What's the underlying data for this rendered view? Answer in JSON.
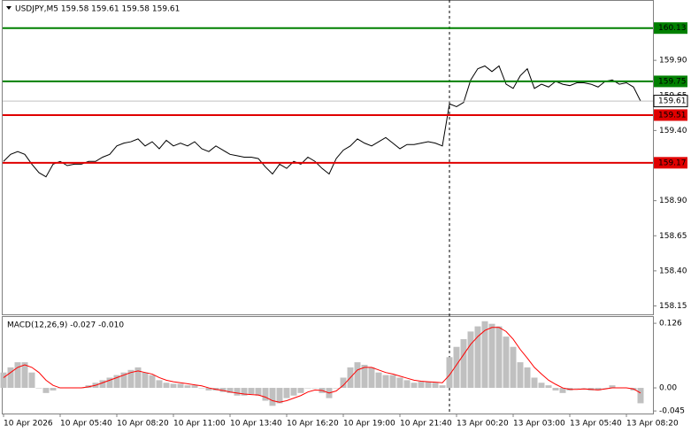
{
  "chart_data": [
    {
      "type": "line",
      "title": "USDJPY,M5  159.58 159.61 159.58 159.61",
      "categories": [
        "10 Apr 2026",
        null,
        null,
        null,
        null,
        null,
        null,
        null,
        "10 Apr 05:40",
        null,
        null,
        null,
        null,
        null,
        null,
        null,
        "10 Apr 08:20",
        null,
        null,
        null,
        null,
        null,
        null,
        null,
        "10 Apr 11:00",
        null,
        null,
        null,
        null,
        null,
        null,
        null,
        "10 Apr 13:40",
        null,
        null,
        null,
        null,
        null,
        null,
        null,
        "10 Apr 16:20",
        null,
        null,
        null,
        null,
        null,
        null,
        null,
        "10 Apr 19:00",
        null,
        null,
        null,
        null,
        null,
        null,
        null,
        "10 Apr 21:40",
        null,
        null,
        null,
        null,
        null,
        null,
        null,
        "13 Apr 00:20",
        null,
        null,
        null,
        null,
        null,
        null,
        null,
        "13 Apr 03:00",
        null,
        null,
        null,
        null,
        null,
        null,
        null,
        "13 Apr 05:40",
        null,
        null,
        null,
        null,
        null,
        null,
        null,
        "13 Apr 08:20",
        null,
        null
      ],
      "series": [
        {
          "name": "USDJPY",
          "color": "#000000",
          "values": [
            159.18,
            159.23,
            159.25,
            159.23,
            159.16,
            159.1,
            159.07,
            159.16,
            159.18,
            159.15,
            159.16,
            159.16,
            159.18,
            159.18,
            159.21,
            159.23,
            159.29,
            159.31,
            159.32,
            159.34,
            159.29,
            159.32,
            159.27,
            159.33,
            159.29,
            159.31,
            159.29,
            159.32,
            159.27,
            159.25,
            159.29,
            159.26,
            159.23,
            159.22,
            159.21,
            159.21,
            159.2,
            159.14,
            159.09,
            159.16,
            159.13,
            159.18,
            159.16,
            159.21,
            159.18,
            159.13,
            159.09,
            159.2,
            159.26,
            159.29,
            159.34,
            159.31,
            159.29,
            159.32,
            159.35,
            159.31,
            159.27,
            159.3,
            159.3,
            159.31,
            159.32,
            159.31,
            159.29,
            159.59,
            159.57,
            159.6,
            159.76,
            159.84,
            159.86,
            159.82,
            159.86,
            159.73,
            159.7,
            159.79,
            159.84,
            159.7,
            159.73,
            159.71,
            159.75,
            159.73,
            159.72,
            159.74,
            159.74,
            159.73,
            159.71,
            159.75,
            159.76,
            159.73,
            159.74,
            159.71,
            159.61
          ]
        }
      ],
      "levels": [
        {
          "value": 160.13,
          "color": "#008000"
        },
        {
          "value": 159.75,
          "color": "#008000"
        },
        {
          "value": 159.51,
          "color": "#e00000"
        },
        {
          "value": 159.17,
          "color": "#e00000"
        }
      ],
      "current_price": 159.61,
      "ylim": [
        158.09,
        160.33
      ],
      "yticks": [
        {
          "value": 159.9,
          "label": "159.90"
        },
        159.65,
        {
          "value": 159.4,
          "label": "159.40"
        },
        159.15,
        {
          "value": 158.9,
          "label": "158.90"
        },
        158.65,
        {
          "value": 158.4,
          "label": "158.40"
        },
        158.15
      ]
    },
    {
      "type": "macd",
      "title": "MACD(12,26,9) -0.027 -0.010",
      "series": [
        {
          "name": "MACD",
          "color": "#c0c0c0",
          "values": [
            0.03,
            0.04,
            0.05,
            0.05,
            0.03,
            0.0,
            -0.01,
            -0.005,
            0.0,
            0.0,
            0.0,
            0.0,
            0.005,
            0.01,
            0.015,
            0.02,
            0.025,
            0.03,
            0.035,
            0.04,
            0.03,
            0.025,
            0.015,
            0.01,
            0.008,
            0.008,
            0.005,
            0.005,
            0.0,
            -0.005,
            -0.005,
            -0.008,
            -0.01,
            -0.015,
            -0.015,
            -0.012,
            -0.015,
            -0.025,
            -0.035,
            -0.03,
            -0.02,
            -0.015,
            -0.01,
            0.0,
            0.0,
            -0.01,
            -0.02,
            0.0,
            0.02,
            0.04,
            0.05,
            0.045,
            0.04,
            0.03,
            0.025,
            0.025,
            0.02,
            0.015,
            0.01,
            0.012,
            0.012,
            0.01,
            0.005,
            0.06,
            0.08,
            0.095,
            0.11,
            0.12,
            0.13,
            0.125,
            0.12,
            0.1,
            0.08,
            0.05,
            0.04,
            0.02,
            0.01,
            0.005,
            -0.005,
            -0.01,
            -0.005,
            0.0,
            0.0,
            -0.005,
            -0.005,
            0.0,
            0.005,
            0.0,
            0.0,
            -0.005,
            -0.03
          ]
        },
        {
          "name": "Signal",
          "color": "#ff0000",
          "values": [
            0.02,
            0.03,
            0.04,
            0.045,
            0.04,
            0.03,
            0.015,
            0.005,
            0.0,
            0.0,
            0.0,
            0.0,
            0.002,
            0.005,
            0.01,
            0.015,
            0.02,
            0.025,
            0.03,
            0.033,
            0.03,
            0.027,
            0.02,
            0.015,
            0.012,
            0.01,
            0.008,
            0.006,
            0.004,
            0.0,
            -0.003,
            -0.005,
            -0.008,
            -0.01,
            -0.012,
            -0.013,
            -0.014,
            -0.018,
            -0.025,
            -0.028,
            -0.025,
            -0.02,
            -0.015,
            -0.008,
            -0.004,
            -0.005,
            -0.01,
            -0.006,
            0.005,
            0.02,
            0.035,
            0.04,
            0.04,
            0.035,
            0.03,
            0.027,
            0.023,
            0.019,
            0.015,
            0.013,
            0.012,
            0.011,
            0.01,
            0.025,
            0.045,
            0.065,
            0.085,
            0.1,
            0.112,
            0.118,
            0.118,
            0.11,
            0.095,
            0.075,
            0.058,
            0.04,
            0.027,
            0.015,
            0.007,
            0.0,
            -0.003,
            -0.003,
            -0.002,
            -0.003,
            -0.004,
            -0.002,
            0.0,
            0.0,
            0.0,
            -0.002,
            -0.01
          ]
        }
      ],
      "ylim": [
        -0.05,
        0.14
      ],
      "yticks": [
        0.126,
        {
          "value": 0,
          "label": "0.00"
        },
        -0.045
      ]
    }
  ]
}
